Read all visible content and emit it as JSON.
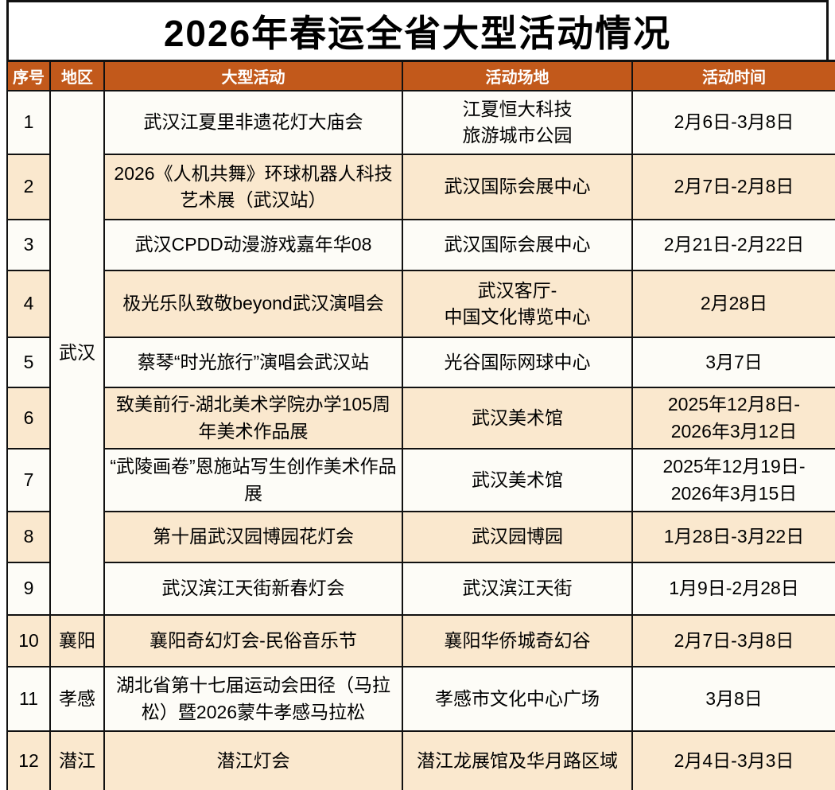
{
  "title": "2026年春运全省大型活动情况",
  "colors": {
    "header_bg": "#C2591B",
    "header_text": "#FFFFFF",
    "row_bg": "#FDFCF7",
    "row_alt_bg": "#FAE8CE",
    "border": "#111111",
    "title_text": "#000000"
  },
  "table": {
    "headers": [
      "序号",
      "地区",
      "大型活动",
      "活动场地",
      "活动时间"
    ],
    "regions": [
      {
        "name": "武汉",
        "row_start": 1,
        "row_span": 9
      },
      {
        "name": "襄阳",
        "row_start": 10,
        "row_span": 1
      },
      {
        "name": "孝感",
        "row_start": 11,
        "row_span": 1
      },
      {
        "name": "潜江",
        "row_start": 12,
        "row_span": 1
      }
    ],
    "rows": [
      {
        "no": "1",
        "activity": "武汉江夏里非遗花灯大庙会",
        "venue": "江夏恒大科技\n旅游城市公园",
        "time": "2月6日-3月8日"
      },
      {
        "no": "2",
        "activity": "2026《人机共舞》环球机器人科技艺术展（武汉站）",
        "venue": "武汉国际会展中心",
        "time": "2月7日-2月8日"
      },
      {
        "no": "3",
        "activity": "武汉CPDD动漫游戏嘉年华08",
        "venue": "武汉国际会展中心",
        "time": "2月21日-2月22日"
      },
      {
        "no": "4",
        "activity": "极光乐队致敬beyond武汉演唱会",
        "venue": "武汉客厅-\n中国文化博览中心",
        "time": "2月28日"
      },
      {
        "no": "5",
        "activity": "蔡琴“时光旅行”演唱会武汉站",
        "venue": "光谷国际网球中心",
        "time": "3月7日"
      },
      {
        "no": "6",
        "activity": "致美前行-湖北美术学院办学105周年美术作品展",
        "venue": "武汉美术馆",
        "time": "2025年12月8日-\n2026年3月12日"
      },
      {
        "no": "7",
        "activity": "“武陵画卷”恩施站写生创作美术作品展",
        "venue": "武汉美术馆",
        "time": "2025年12月19日-\n2026年3月15日"
      },
      {
        "no": "8",
        "activity": "第十届武汉园博园花灯会",
        "venue": "武汉园博园",
        "time": "1月28日-3月22日"
      },
      {
        "no": "9",
        "activity": "武汉滨江天街新春灯会",
        "venue": "武汉滨江天街",
        "time": "1月9日-2月28日"
      },
      {
        "no": "10",
        "activity": "襄阳奇幻灯会-民俗音乐节",
        "venue": "襄阳华侨城奇幻谷",
        "time": "2月7日-3月8日"
      },
      {
        "no": "11",
        "activity": "湖北省第十七届运动会田径（马拉松）暨2026蒙牛孝感马拉松",
        "venue": "孝感市文化中心广场",
        "time": "3月8日"
      },
      {
        "no": "12",
        "activity": "潜江灯会",
        "venue": "潜江龙展馆及华月路区域",
        "time": "2月4日-3月3日"
      }
    ]
  }
}
